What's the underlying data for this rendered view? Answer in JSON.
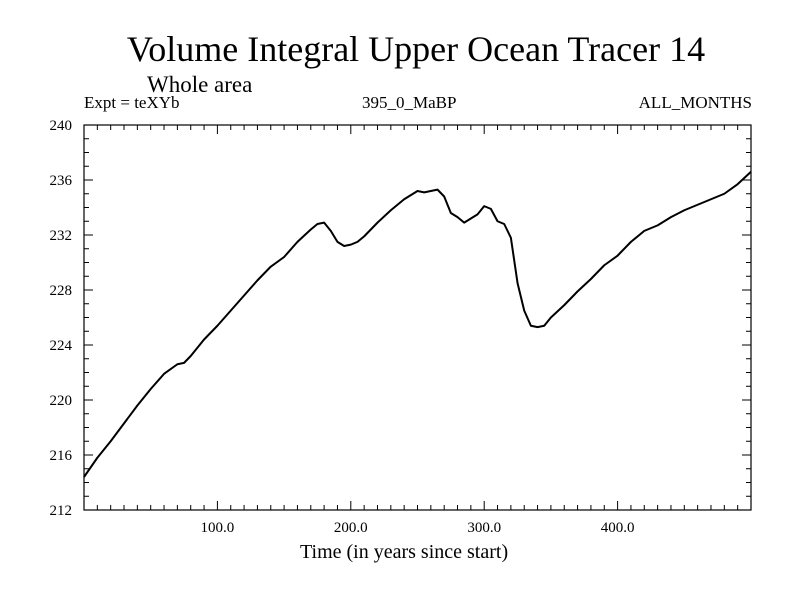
{
  "header": {
    "title": "Volume Integral Upper Ocean Tracer 14",
    "subtitle": "Whole area",
    "expt": "Expt = teXYb",
    "run": "395_0_MaBP",
    "months": "ALL_MONTHS"
  },
  "chart_data": {
    "type": "line",
    "xlabel": "Time (in years since start)",
    "ylabel": "",
    "xlim": [
      0,
      500
    ],
    "ylim": [
      212,
      240
    ],
    "x_ticks": [
      100,
      200,
      300,
      400
    ],
    "x_tick_labels": [
      "100.0",
      "200.0",
      "300.0",
      "400.0"
    ],
    "y_ticks": [
      212,
      216,
      220,
      224,
      228,
      232,
      236,
      240
    ],
    "y_tick_labels": [
      "212",
      "216",
      "220",
      "224",
      "228",
      "232",
      "236",
      "240"
    ],
    "grid": false,
    "line_color": "#000000",
    "series": [
      {
        "x": [
          0,
          10,
          20,
          30,
          40,
          50,
          60,
          70,
          75,
          80,
          90,
          100,
          110,
          120,
          130,
          140,
          150,
          160,
          170,
          175,
          180,
          185,
          190,
          195,
          200,
          205,
          210,
          220,
          230,
          240,
          250,
          255,
          260,
          265,
          270,
          275,
          280,
          285,
          290,
          295,
          300,
          305,
          310,
          315,
          320,
          325,
          330,
          335,
          340,
          345,
          350,
          360,
          370,
          380,
          390,
          400,
          410,
          420,
          430,
          440,
          450,
          460,
          470,
          480,
          490,
          500
        ],
        "y": [
          214.4,
          215.8,
          217.0,
          218.3,
          219.6,
          220.8,
          221.9,
          222.6,
          222.7,
          223.2,
          224.4,
          225.4,
          226.5,
          227.6,
          228.7,
          229.7,
          230.4,
          231.5,
          232.4,
          232.8,
          232.9,
          232.3,
          231.5,
          231.2,
          231.3,
          231.5,
          231.9,
          232.9,
          233.8,
          234.6,
          235.2,
          235.1,
          235.2,
          235.3,
          234.8,
          233.6,
          233.3,
          232.9,
          233.2,
          233.5,
          234.1,
          233.9,
          233.0,
          232.8,
          231.8,
          228.5,
          226.5,
          225.4,
          225.3,
          225.4,
          226.0,
          226.9,
          227.9,
          228.8,
          229.8,
          230.5,
          231.5,
          232.3,
          232.7,
          233.3,
          233.8,
          234.2,
          234.6,
          235.0,
          235.7,
          236.6
        ]
      }
    ]
  }
}
